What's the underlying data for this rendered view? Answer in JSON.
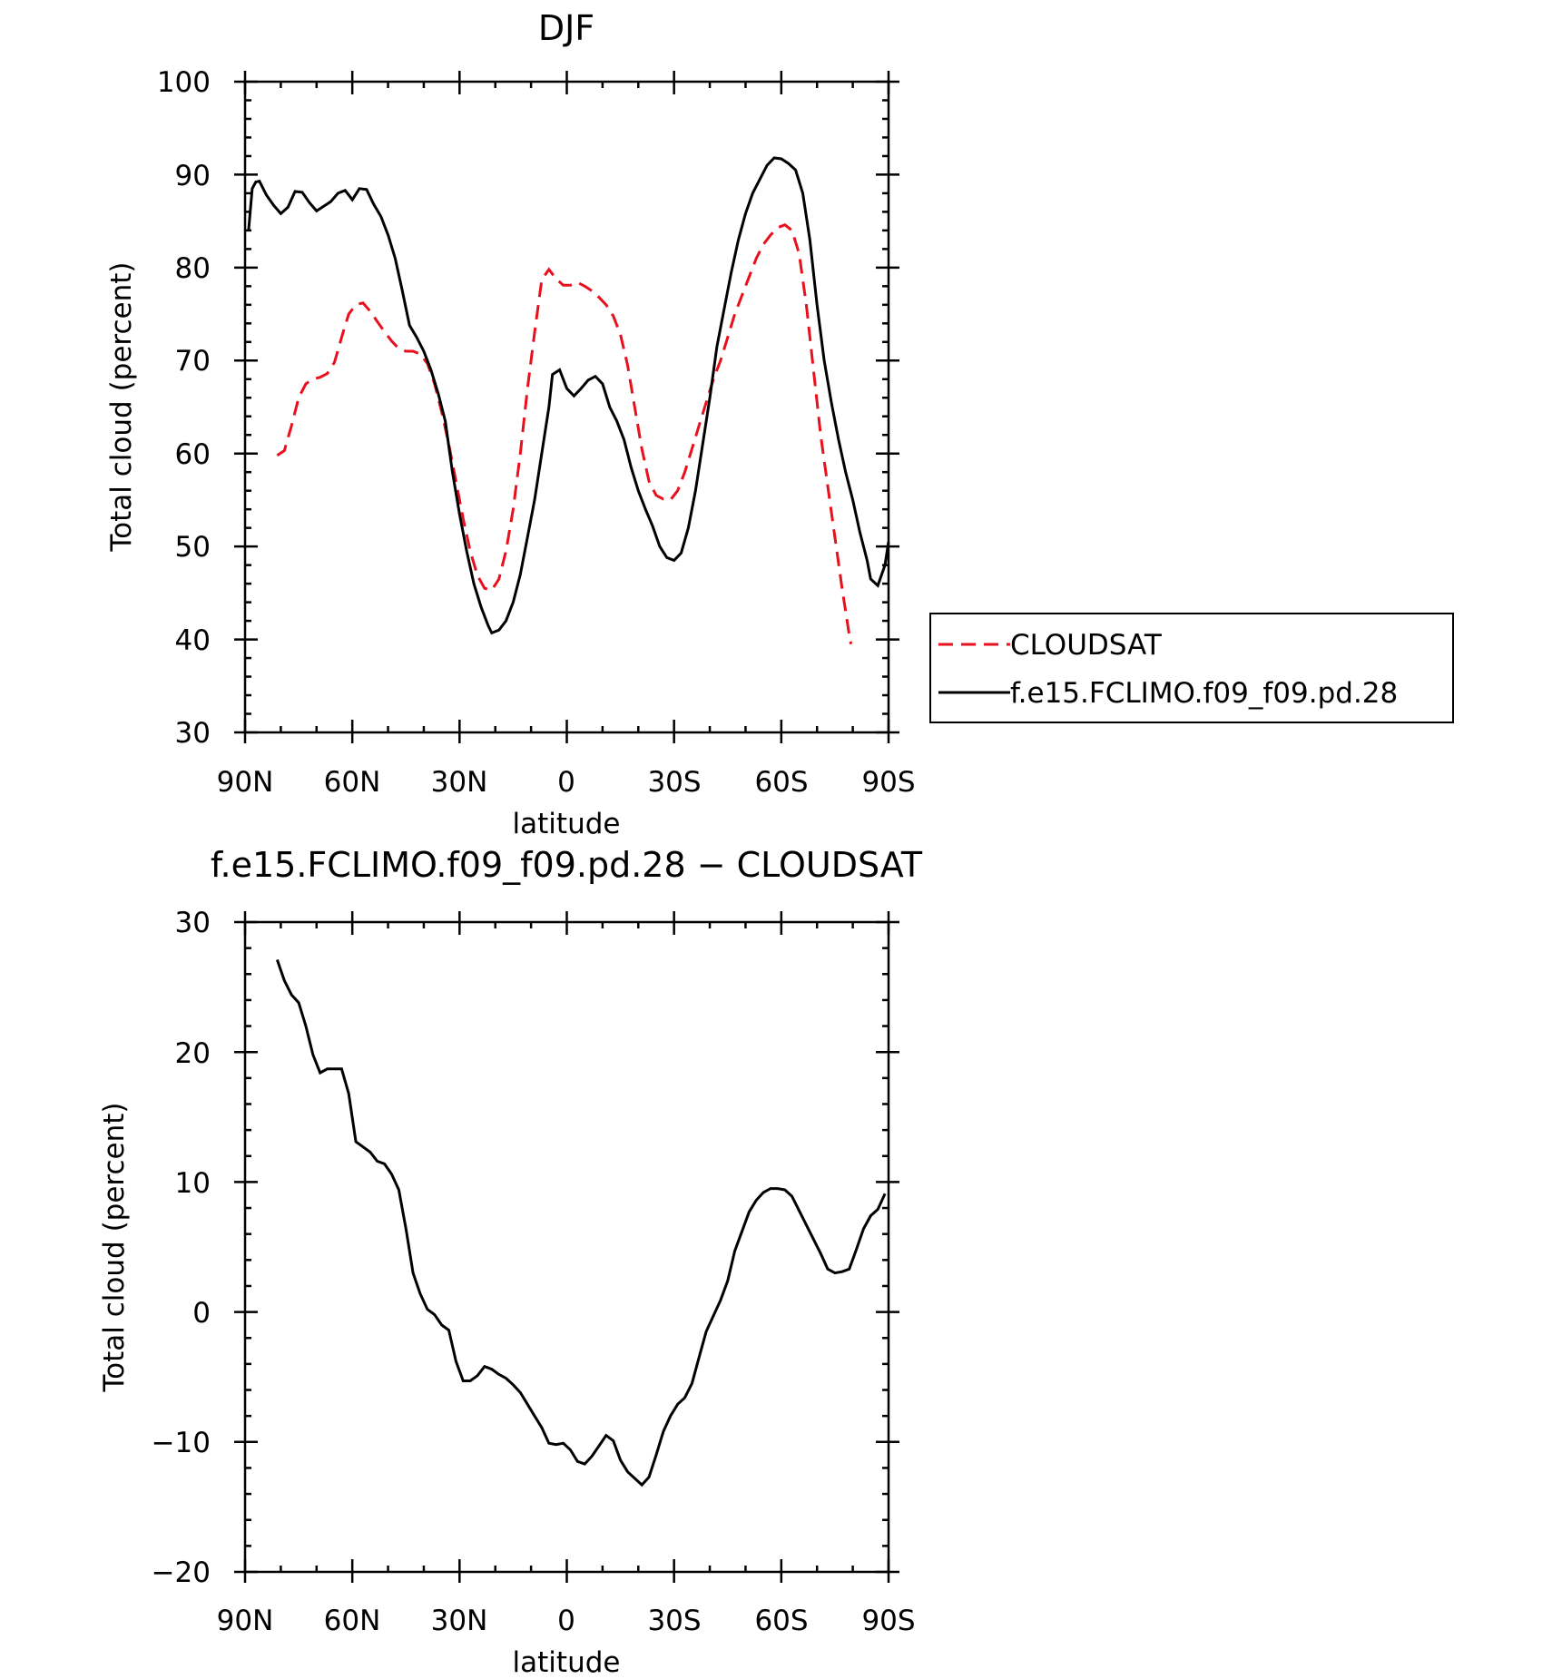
{
  "chart_data": [
    {
      "type": "line",
      "title": "DJF",
      "xlabel": "latitude",
      "ylabel": "Total cloud (percent)",
      "xlim": [
        90,
        -90
      ],
      "ylim": [
        30,
        100
      ],
      "x_ticks": [
        90,
        60,
        30,
        0,
        -30,
        -60,
        -90
      ],
      "x_tick_labels": [
        "90N",
        "60N",
        "30N",
        "0",
        "30S",
        "60S",
        "90S"
      ],
      "y_ticks": [
        30,
        40,
        50,
        60,
        70,
        80,
        90,
        100
      ],
      "y_tick_labels": [
        "30",
        "40",
        "50",
        "60",
        "70",
        "80",
        "90",
        "100"
      ],
      "legend": {
        "position": "right",
        "entries": [
          "CLOUDSAT",
          "f.e15.FCLIMO.f09_f09.pd.28"
        ]
      },
      "series": [
        {
          "name": "CLOUDSAT",
          "color": "#e8101c",
          "dash": true,
          "points": [
            [
              81,
              59.8
            ],
            [
              79,
              60.3
            ],
            [
              77,
              63
            ],
            [
              75,
              66
            ],
            [
              73,
              67.5
            ],
            [
              71,
              68
            ],
            [
              69,
              68.2
            ],
            [
              67,
              68.6
            ],
            [
              65,
              69.8
            ],
            [
              63,
              72.5
            ],
            [
              61,
              75
            ],
            [
              59,
              76
            ],
            [
              57,
              76.2
            ],
            [
              55,
              75.3
            ],
            [
              53,
              74.2
            ],
            [
              51,
              73.1
            ],
            [
              49,
              72.1
            ],
            [
              47,
              71.3
            ],
            [
              45,
              71
            ],
            [
              43,
              71
            ],
            [
              41,
              70.7
            ],
            [
              39,
              69.7
            ],
            [
              37,
              67.5
            ],
            [
              35,
              64.5
            ],
            [
              33,
              61
            ],
            [
              31,
              57
            ],
            [
              29,
              53
            ],
            [
              27,
              49.5
            ],
            [
              25,
              46.9
            ],
            [
              23,
              45.5
            ],
            [
              21,
              45.3
            ],
            [
              19,
              46.5
            ],
            [
              17,
              49.5
            ],
            [
              15,
              54
            ],
            [
              13,
              60
            ],
            [
              11,
              67
            ],
            [
              9,
              73
            ],
            [
              7,
              78.7
            ],
            [
              5,
              79.8
            ],
            [
              3,
              78.8
            ],
            [
              1,
              78.1
            ],
            [
              -1,
              78.1
            ],
            [
              -3,
              78.4
            ],
            [
              -5,
              78
            ],
            [
              -7,
              77.5
            ],
            [
              -9,
              76.8
            ],
            [
              -11,
              76
            ],
            [
              -13,
              74.8
            ],
            [
              -15,
              72.8
            ],
            [
              -17,
              69.5
            ],
            [
              -19,
              65
            ],
            [
              -21,
              60.5
            ],
            [
              -23,
              57
            ],
            [
              -25,
              55.5
            ],
            [
              -27,
              55.1
            ],
            [
              -29,
              55
            ],
            [
              -31,
              56
            ],
            [
              -33,
              58
            ],
            [
              -35,
              60.5
            ],
            [
              -37,
              63
            ],
            [
              -39,
              65.5
            ],
            [
              -41,
              68
            ],
            [
              -43,
              70
            ],
            [
              -45,
              72.5
            ],
            [
              -47,
              75
            ],
            [
              -49,
              77
            ],
            [
              -51,
              79
            ],
            [
              -53,
              81
            ],
            [
              -55,
              82.5
            ],
            [
              -57,
              83.5
            ],
            [
              -59,
              84.3
            ],
            [
              -61,
              84.6
            ],
            [
              -63,
              84
            ],
            [
              -65,
              81.5
            ],
            [
              -67,
              76
            ],
            [
              -69,
              69
            ],
            [
              -71,
              62
            ],
            [
              -73,
              56.5
            ],
            [
              -75,
              51
            ],
            [
              -77,
              45.5
            ],
            [
              -79,
              40.5
            ],
            [
              -79.5,
              39.5
            ]
          ]
        },
        {
          "name": "f.e15.FCLIMO.f09_f09.pd.28",
          "color": "#000000",
          "dash": false,
          "points": [
            [
              89,
              84
            ],
            [
              88,
              88.5
            ],
            [
              87,
              89.2
            ],
            [
              86,
              89.3
            ],
            [
              84,
              87.8
            ],
            [
              82,
              86.7
            ],
            [
              80,
              85.8
            ],
            [
              78,
              86.5
            ],
            [
              76,
              88.2
            ],
            [
              74,
              88.1
            ],
            [
              72,
              87
            ],
            [
              70,
              86.1
            ],
            [
              68,
              86.6
            ],
            [
              66,
              87.1
            ],
            [
              64,
              88
            ],
            [
              62,
              88.3
            ],
            [
              60,
              87.3
            ],
            [
              58,
              88.5
            ],
            [
              56,
              88.4
            ],
            [
              54,
              86.8
            ],
            [
              52,
              85.5
            ],
            [
              50,
              83.5
            ],
            [
              48,
              81
            ],
            [
              46,
              77.5
            ],
            [
              44,
              73.8
            ],
            [
              42,
              72.5
            ],
            [
              40,
              71
            ],
            [
              38,
              69
            ],
            [
              36,
              66.5
            ],
            [
              34,
              63.5
            ],
            [
              32,
              58
            ],
            [
              30,
              53.5
            ],
            [
              28,
              49.5
            ],
            [
              26,
              46
            ],
            [
              24,
              43.5
            ],
            [
              22,
              41.5
            ],
            [
              21,
              40.7
            ],
            [
              19,
              41
            ],
            [
              17,
              42
            ],
            [
              15,
              44
            ],
            [
              13,
              47
            ],
            [
              11,
              51
            ],
            [
              9,
              55
            ],
            [
              7,
              60
            ],
            [
              5,
              65
            ],
            [
              4,
              68.5
            ],
            [
              2,
              69
            ],
            [
              0,
              67
            ],
            [
              -2,
              66.2
            ],
            [
              -4,
              67
            ],
            [
              -6,
              67.9
            ],
            [
              -8,
              68.3
            ],
            [
              -10,
              67.5
            ],
            [
              -12,
              65
            ],
            [
              -14,
              63.5
            ],
            [
              -16,
              61.5
            ],
            [
              -18,
              58.5
            ],
            [
              -20,
              56
            ],
            [
              -22,
              54
            ],
            [
              -24,
              52.2
            ],
            [
              -26,
              50
            ],
            [
              -28,
              48.8
            ],
            [
              -30,
              48.5
            ],
            [
              -32,
              49.3
            ],
            [
              -34,
              52
            ],
            [
              -36,
              56
            ],
            [
              -38,
              61
            ],
            [
              -40,
              66
            ],
            [
              -42,
              71.5
            ],
            [
              -44,
              75.5
            ],
            [
              -46,
              79.5
            ],
            [
              -48,
              83
            ],
            [
              -50,
              85.8
            ],
            [
              -52,
              88
            ],
            [
              -54,
              89.5
            ],
            [
              -56,
              91
            ],
            [
              -58,
              91.8
            ],
            [
              -60,
              91.7
            ],
            [
              -62,
              91.2
            ],
            [
              -64,
              90.5
            ],
            [
              -66,
              88
            ],
            [
              -68,
              83
            ],
            [
              -70,
              76
            ],
            [
              -72,
              70
            ],
            [
              -74,
              65.5
            ],
            [
              -76,
              61.5
            ],
            [
              -78,
              58
            ],
            [
              -80,
              55
            ],
            [
              -82,
              51.5
            ],
            [
              -84,
              48.5
            ],
            [
              -85,
              46.5
            ],
            [
              -87,
              45.8
            ],
            [
              -89,
              48
            ],
            [
              -90,
              50.5
            ]
          ]
        }
      ]
    },
    {
      "type": "line",
      "title": "f.e15.FCLIMO.f09_f09.pd.28 − CLOUDSAT",
      "xlabel": "latitude",
      "ylabel": "Total cloud (percent)",
      "xlim": [
        90,
        -90
      ],
      "ylim": [
        -20,
        30
      ],
      "x_ticks": [
        90,
        60,
        30,
        0,
        -30,
        -60,
        -90
      ],
      "x_tick_labels": [
        "90N",
        "60N",
        "30N",
        "0",
        "30S",
        "60S",
        "90S"
      ],
      "y_ticks": [
        -20,
        -10,
        0,
        10,
        20,
        30
      ],
      "y_tick_labels": [
        "−20",
        "−10",
        "0",
        "10",
        "20",
        "30"
      ],
      "series": [
        {
          "color": "#000000",
          "dash": false,
          "points": [
            [
              81,
              27.1
            ],
            [
              79,
              25.5
            ],
            [
              77,
              24.4
            ],
            [
              75,
              23.8
            ],
            [
              73,
              22
            ],
            [
              71,
              19.8
            ],
            [
              69,
              18.4
            ],
            [
              67,
              18.7
            ],
            [
              65,
              18.7
            ],
            [
              63,
              18.7
            ],
            [
              61,
              16.8
            ],
            [
              59,
              13.1
            ],
            [
              57,
              12.7
            ],
            [
              55,
              12.3
            ],
            [
              53,
              11.6
            ],
            [
              51,
              11.4
            ],
            [
              49,
              10.6
            ],
            [
              47,
              9.4
            ],
            [
              45,
              6.4
            ],
            [
              43,
              3
            ],
            [
              41,
              1.4
            ],
            [
              39,
              0.2
            ],
            [
              37,
              -0.2
            ],
            [
              35,
              -1
            ],
            [
              33,
              -1.4
            ],
            [
              31,
              -3.8
            ],
            [
              29,
              -5.3
            ],
            [
              27,
              -5.3
            ],
            [
              25,
              -4.9
            ],
            [
              23,
              -4.2
            ],
            [
              21,
              -4.4
            ],
            [
              19,
              -4.8
            ],
            [
              17,
              -5.1
            ],
            [
              15,
              -5.6
            ],
            [
              13,
              -6.2
            ],
            [
              11,
              -7.1
            ],
            [
              9,
              -8
            ],
            [
              7,
              -8.9
            ],
            [
              5,
              -10.1
            ],
            [
              3,
              -10.2
            ],
            [
              1,
              -10.1
            ],
            [
              -1,
              -10.6
            ],
            [
              -3,
              -11.5
            ],
            [
              -5,
              -11.7
            ],
            [
              -7,
              -11.1
            ],
            [
              -9,
              -10.3
            ],
            [
              -11,
              -9.5
            ],
            [
              -13,
              -9.9
            ],
            [
              -15,
              -11.4
            ],
            [
              -17,
              -12.3
            ],
            [
              -19,
              -12.8
            ],
            [
              -21,
              -13.3
            ],
            [
              -23,
              -12.7
            ],
            [
              -25,
              -11
            ],
            [
              -27,
              -9.2
            ],
            [
              -29,
              -8
            ],
            [
              -31,
              -7.1
            ],
            [
              -33,
              -6.6
            ],
            [
              -35,
              -5.5
            ],
            [
              -37,
              -3.5
            ],
            [
              -39,
              -1.5
            ],
            [
              -41,
              -0.3
            ],
            [
              -43,
              0.9
            ],
            [
              -45,
              2.4
            ],
            [
              -47,
              4.7
            ],
            [
              -49,
              6.2
            ],
            [
              -51,
              7.7
            ],
            [
              -53,
              8.6
            ],
            [
              -55,
              9.2
            ],
            [
              -57,
              9.5
            ],
            [
              -59,
              9.5
            ],
            [
              -61,
              9.4
            ],
            [
              -63,
              8.9
            ],
            [
              -65,
              7.8
            ],
            [
              -67,
              6.7
            ],
            [
              -69,
              5.6
            ],
            [
              -71,
              4.5
            ],
            [
              -73,
              3.3
            ],
            [
              -75,
              3
            ],
            [
              -77,
              3.1
            ],
            [
              -79,
              3.3
            ],
            [
              -81,
              4.8
            ],
            [
              -83,
              6.4
            ],
            [
              -85,
              7.4
            ],
            [
              -87,
              7.9
            ],
            [
              -89,
              9.1
            ]
          ]
        }
      ]
    }
  ]
}
